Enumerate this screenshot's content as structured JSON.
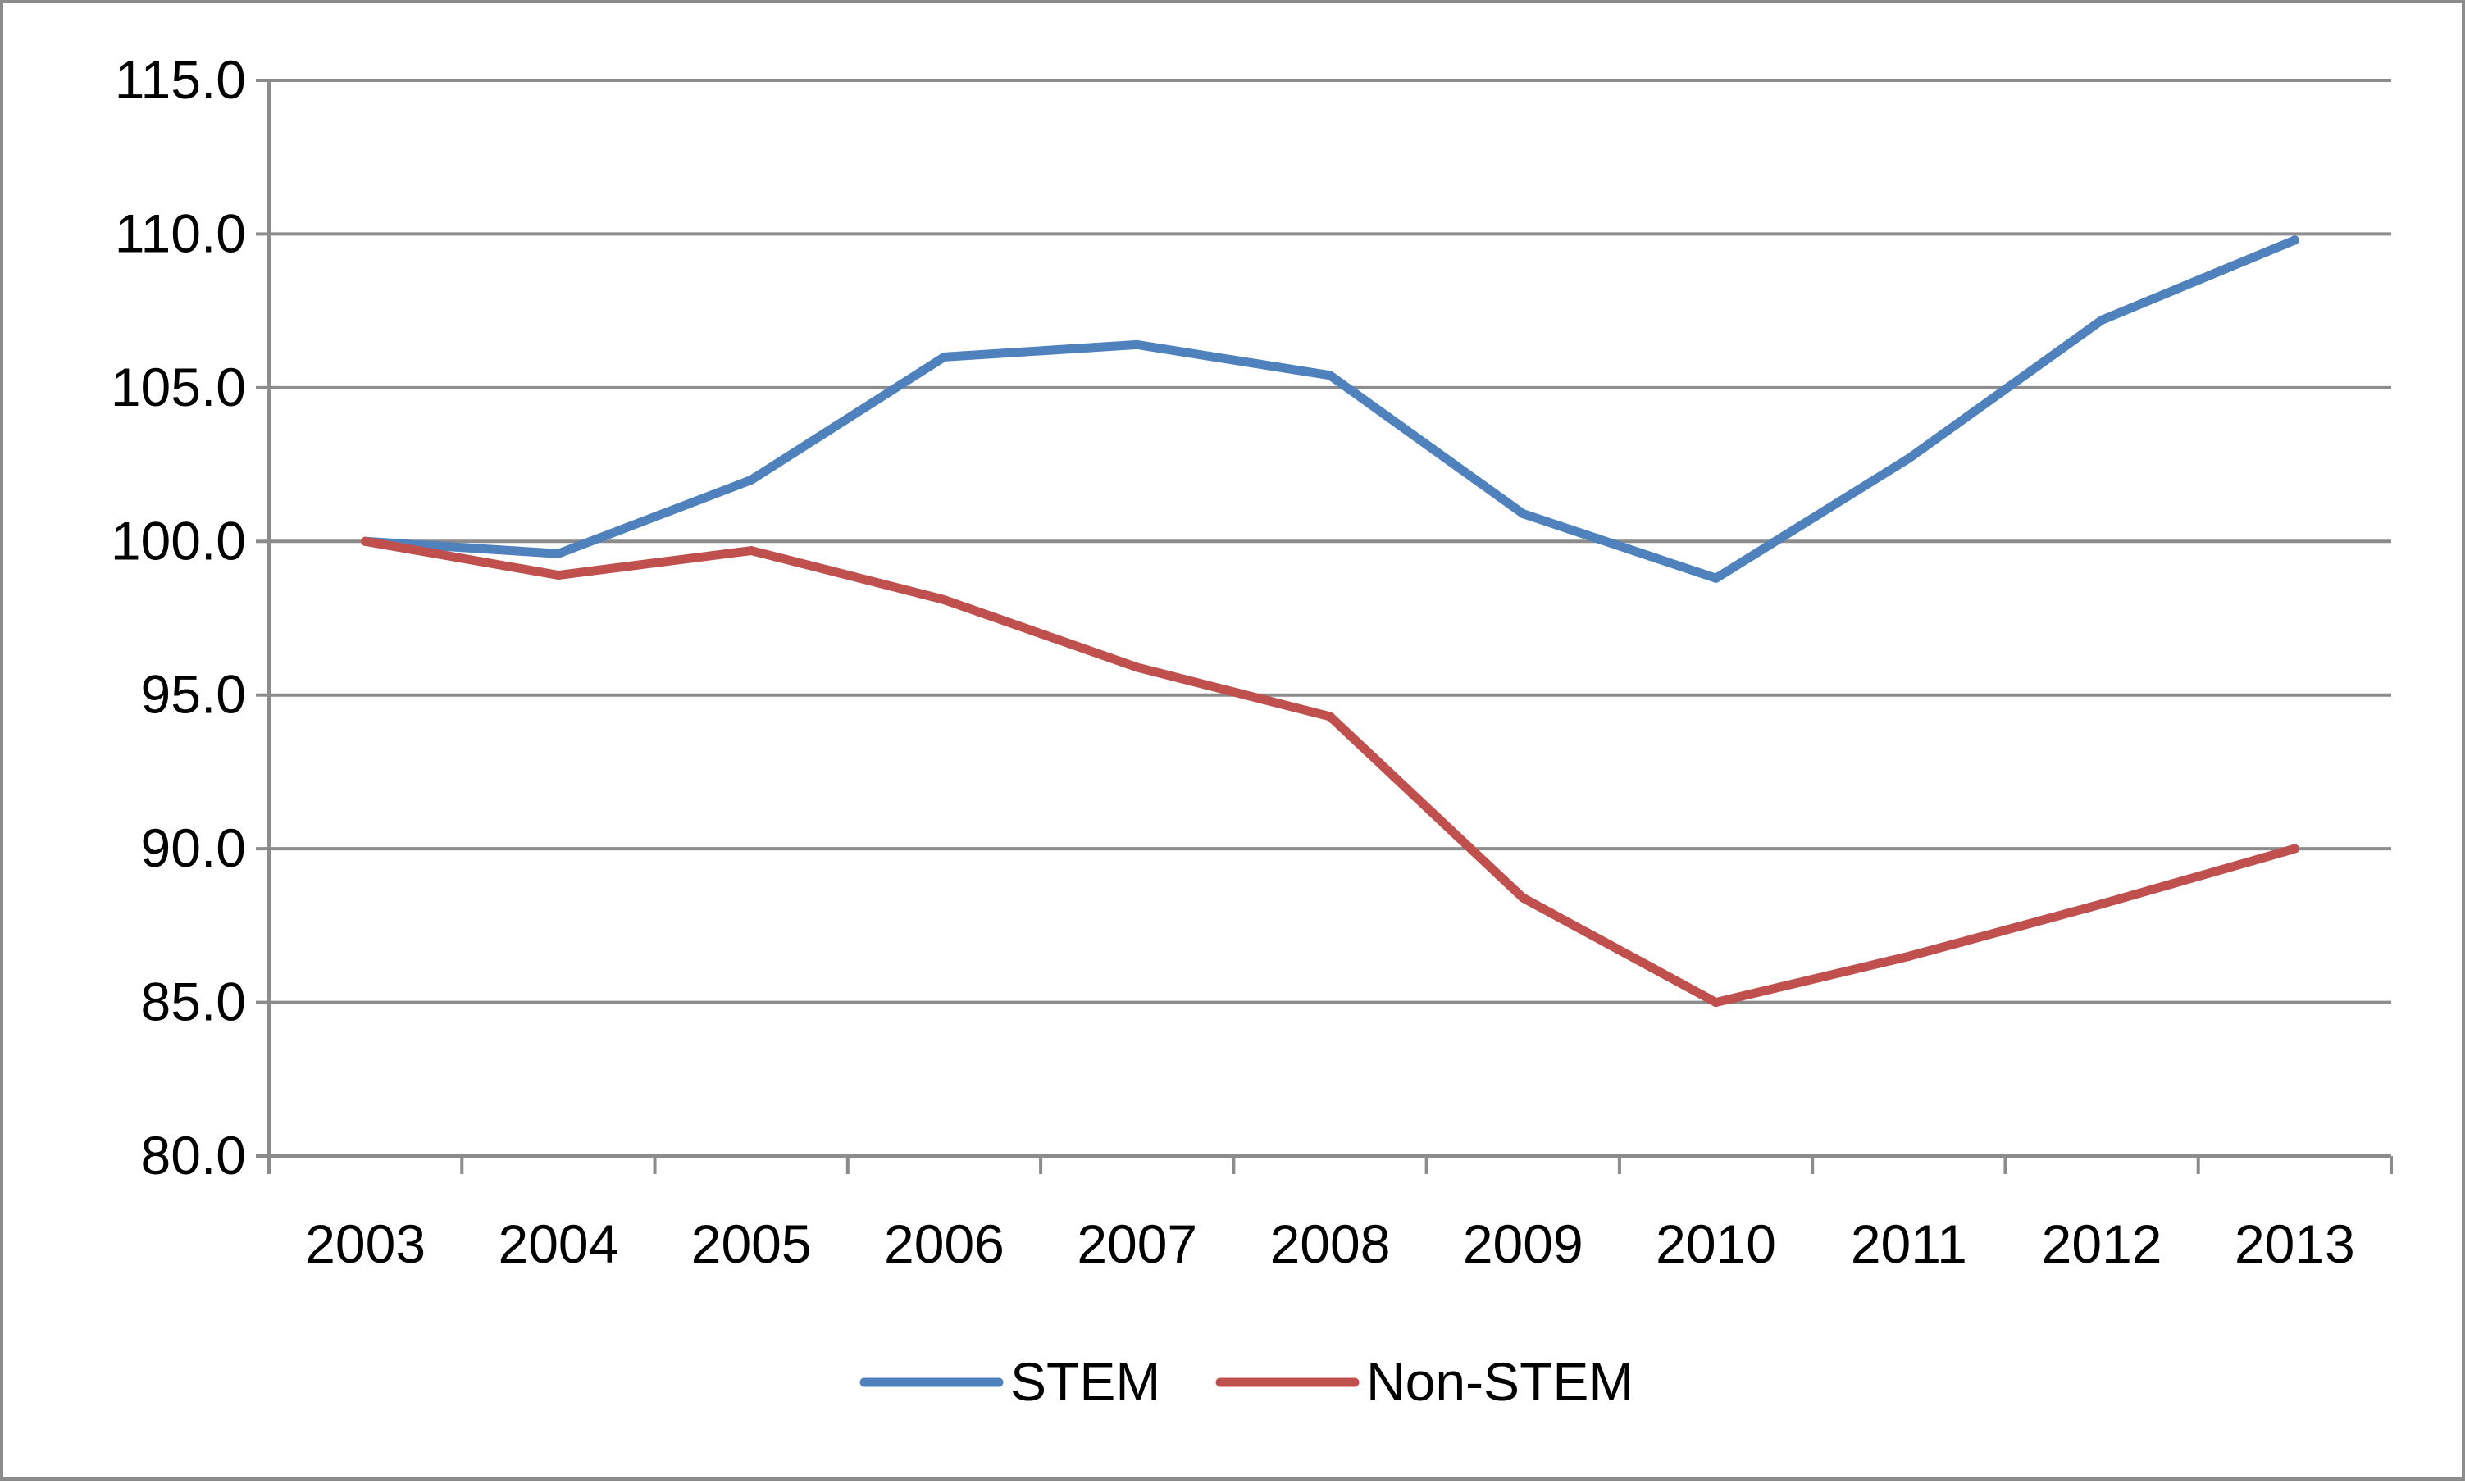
{
  "chart_data": {
    "type": "line",
    "title": "",
    "xlabel": "",
    "ylabel": "",
    "categories": [
      "2003",
      "2004",
      "2005",
      "2006",
      "2007",
      "2008",
      "2009",
      "2010",
      "2011",
      "2012",
      "2013"
    ],
    "ylim": [
      80,
      115
    ],
    "yticks": [
      "80.0",
      "85.0",
      "90.0",
      "95.0",
      "100.0",
      "105.0",
      "110.0",
      "115.0"
    ],
    "grid": true,
    "legend_position": "bottom",
    "series": [
      {
        "name": "STEM",
        "color": "#4f81bd",
        "values": [
          100.0,
          99.6,
          102.0,
          106.0,
          106.4,
          105.4,
          100.9,
          98.8,
          102.7,
          107.2,
          109.8
        ]
      },
      {
        "name": "Non-STEM",
        "color": "#c0504d",
        "values": [
          100.0,
          98.9,
          99.7,
          98.1,
          95.9,
          94.3,
          88.4,
          85.0,
          86.5,
          88.2,
          90.0
        ]
      }
    ]
  }
}
